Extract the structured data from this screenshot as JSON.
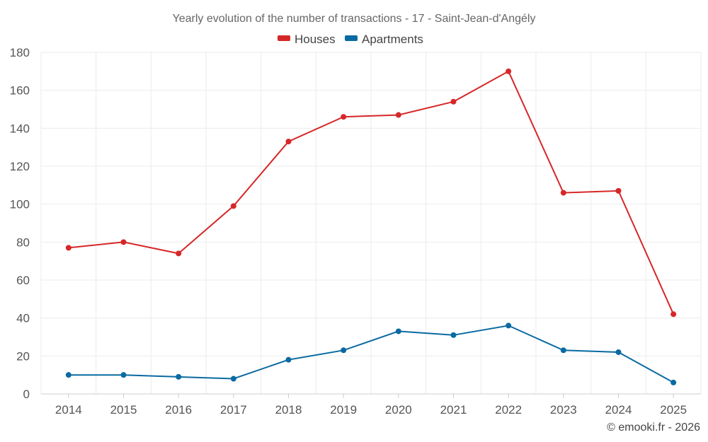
{
  "chart_data": {
    "type": "line",
    "title": "Yearly evolution of the number of transactions - 17 - Saint-Jean-d'Angély",
    "xlabel": "",
    "ylabel": "",
    "categories": [
      "2014",
      "2015",
      "2016",
      "2017",
      "2018",
      "2019",
      "2020",
      "2021",
      "2022",
      "2023",
      "2024",
      "2025"
    ],
    "ylim": [
      0,
      180
    ],
    "yticks": [
      0,
      20,
      40,
      60,
      80,
      100,
      120,
      140,
      160,
      180
    ],
    "grid": true,
    "legend_position": "top-center",
    "series": [
      {
        "name": "Houses",
        "color": "#d62728",
        "values": [
          77,
          80,
          74,
          99,
          133,
          146,
          147,
          154,
          170,
          106,
          107,
          42
        ]
      },
      {
        "name": "Apartments",
        "color": "#0a6aa1",
        "values": [
          10,
          10,
          9,
          8,
          18,
          23,
          33,
          31,
          36,
          23,
          22,
          6
        ]
      }
    ]
  },
  "credit": "© emooki.fr - 2026"
}
